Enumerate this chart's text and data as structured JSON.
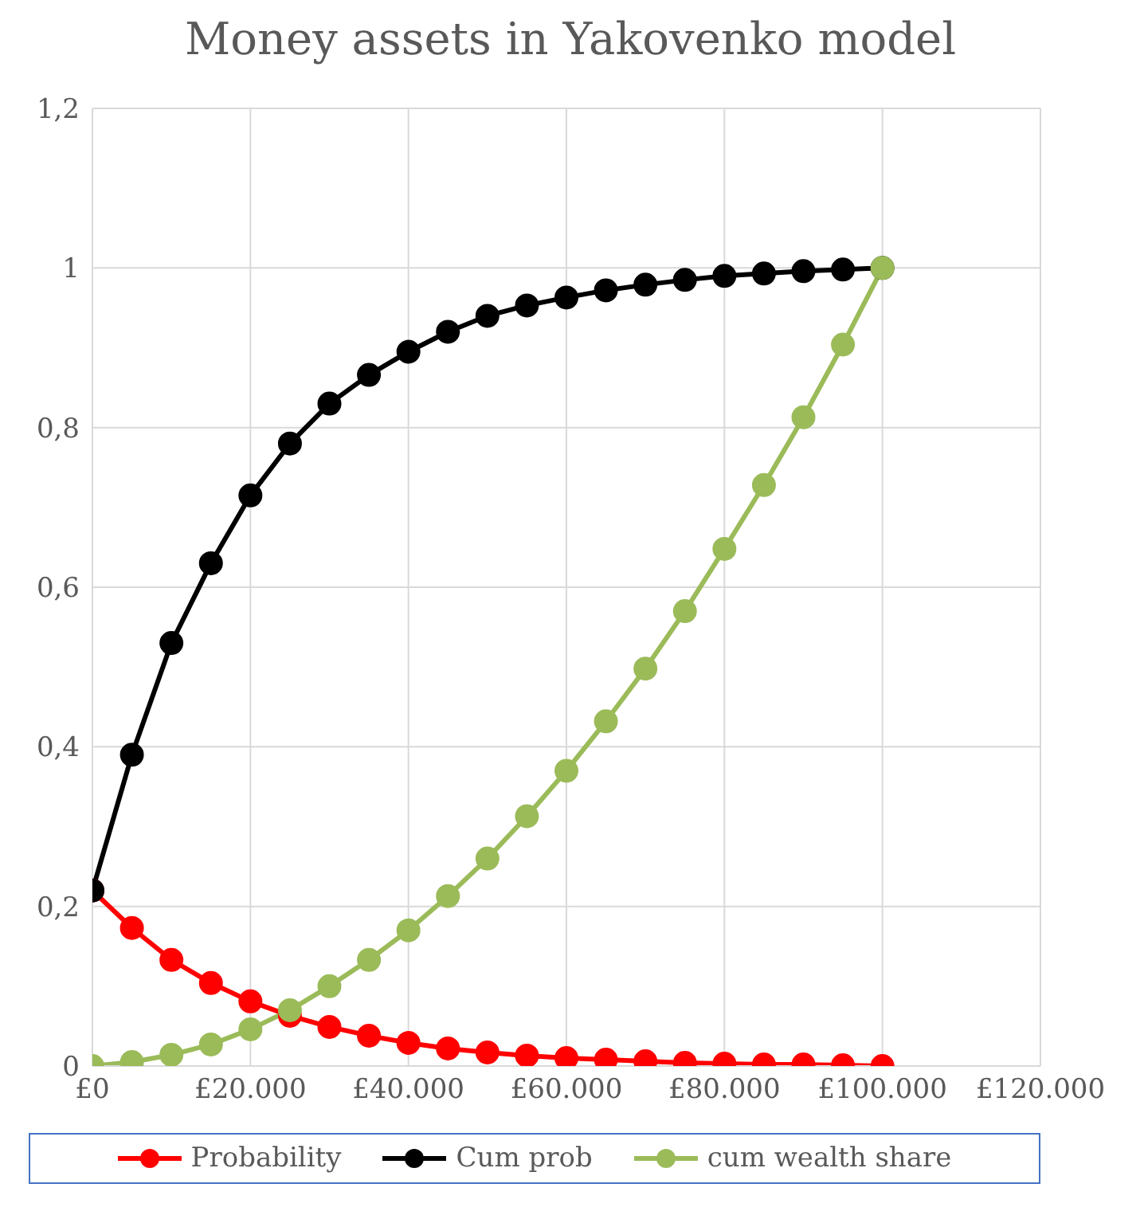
{
  "chart_data": {
    "type": "line",
    "title": "Money assets in Yakovenko  model",
    "x": [
      0,
      5000,
      10000,
      15000,
      20000,
      25000,
      30000,
      35000,
      40000,
      45000,
      50000,
      55000,
      60000,
      65000,
      70000,
      75000,
      80000,
      85000,
      90000,
      95000,
      100000
    ],
    "series": [
      {
        "name": "Probability",
        "color": "#ff0000",
        "values": [
          0.22,
          0.173,
          0.133,
          0.104,
          0.081,
          0.063,
          0.049,
          0.038,
          0.029,
          0.022,
          0.017,
          0.013,
          0.01,
          0.008,
          0.006,
          0.004,
          0.003,
          0.002,
          0.002,
          0.001,
          0
        ]
      },
      {
        "name": "Cum prob",
        "color": "#000000",
        "values": [
          0.22,
          0.39,
          0.53,
          0.63,
          0.715,
          0.78,
          0.83,
          0.866,
          0.895,
          0.92,
          0.94,
          0.953,
          0.963,
          0.972,
          0.979,
          0.985,
          0.99,
          0.993,
          0.996,
          0.998,
          1.0
        ]
      },
      {
        "name": "cum wealth share",
        "color": "#9bbb59",
        "values": [
          0,
          0.005,
          0.014,
          0.027,
          0.046,
          0.07,
          0.1,
          0.133,
          0.17,
          0.213,
          0.26,
          0.313,
          0.37,
          0.432,
          0.498,
          0.57,
          0.648,
          0.728,
          0.813,
          0.904,
          1.0
        ]
      }
    ],
    "xlim": [
      0,
      120000
    ],
    "xticks": [
      {
        "value": 0,
        "label": "£0"
      },
      {
        "value": 20000,
        "label": "£20.000"
      },
      {
        "value": 40000,
        "label": "£40.000"
      },
      {
        "value": 60000,
        "label": "£60.000"
      },
      {
        "value": 80000,
        "label": "£80.000"
      },
      {
        "value": 100000,
        "label": "£100.000"
      },
      {
        "value": 120000,
        "label": "£120.000"
      }
    ],
    "ylim": [
      0,
      1.2
    ],
    "yticks": [
      0,
      {
        "value": 0.2,
        "label": "0,2"
      },
      {
        "value": 0.4,
        "label": "0,4"
      },
      {
        "value": 0.6,
        "label": "0,6"
      },
      {
        "value": 0.8,
        "label": "0,8"
      },
      1,
      {
        "value": 1.2,
        "label": "1,2"
      }
    ],
    "grid": true,
    "legend": "bottom",
    "marker": "circle",
    "line_style": "solid"
  }
}
